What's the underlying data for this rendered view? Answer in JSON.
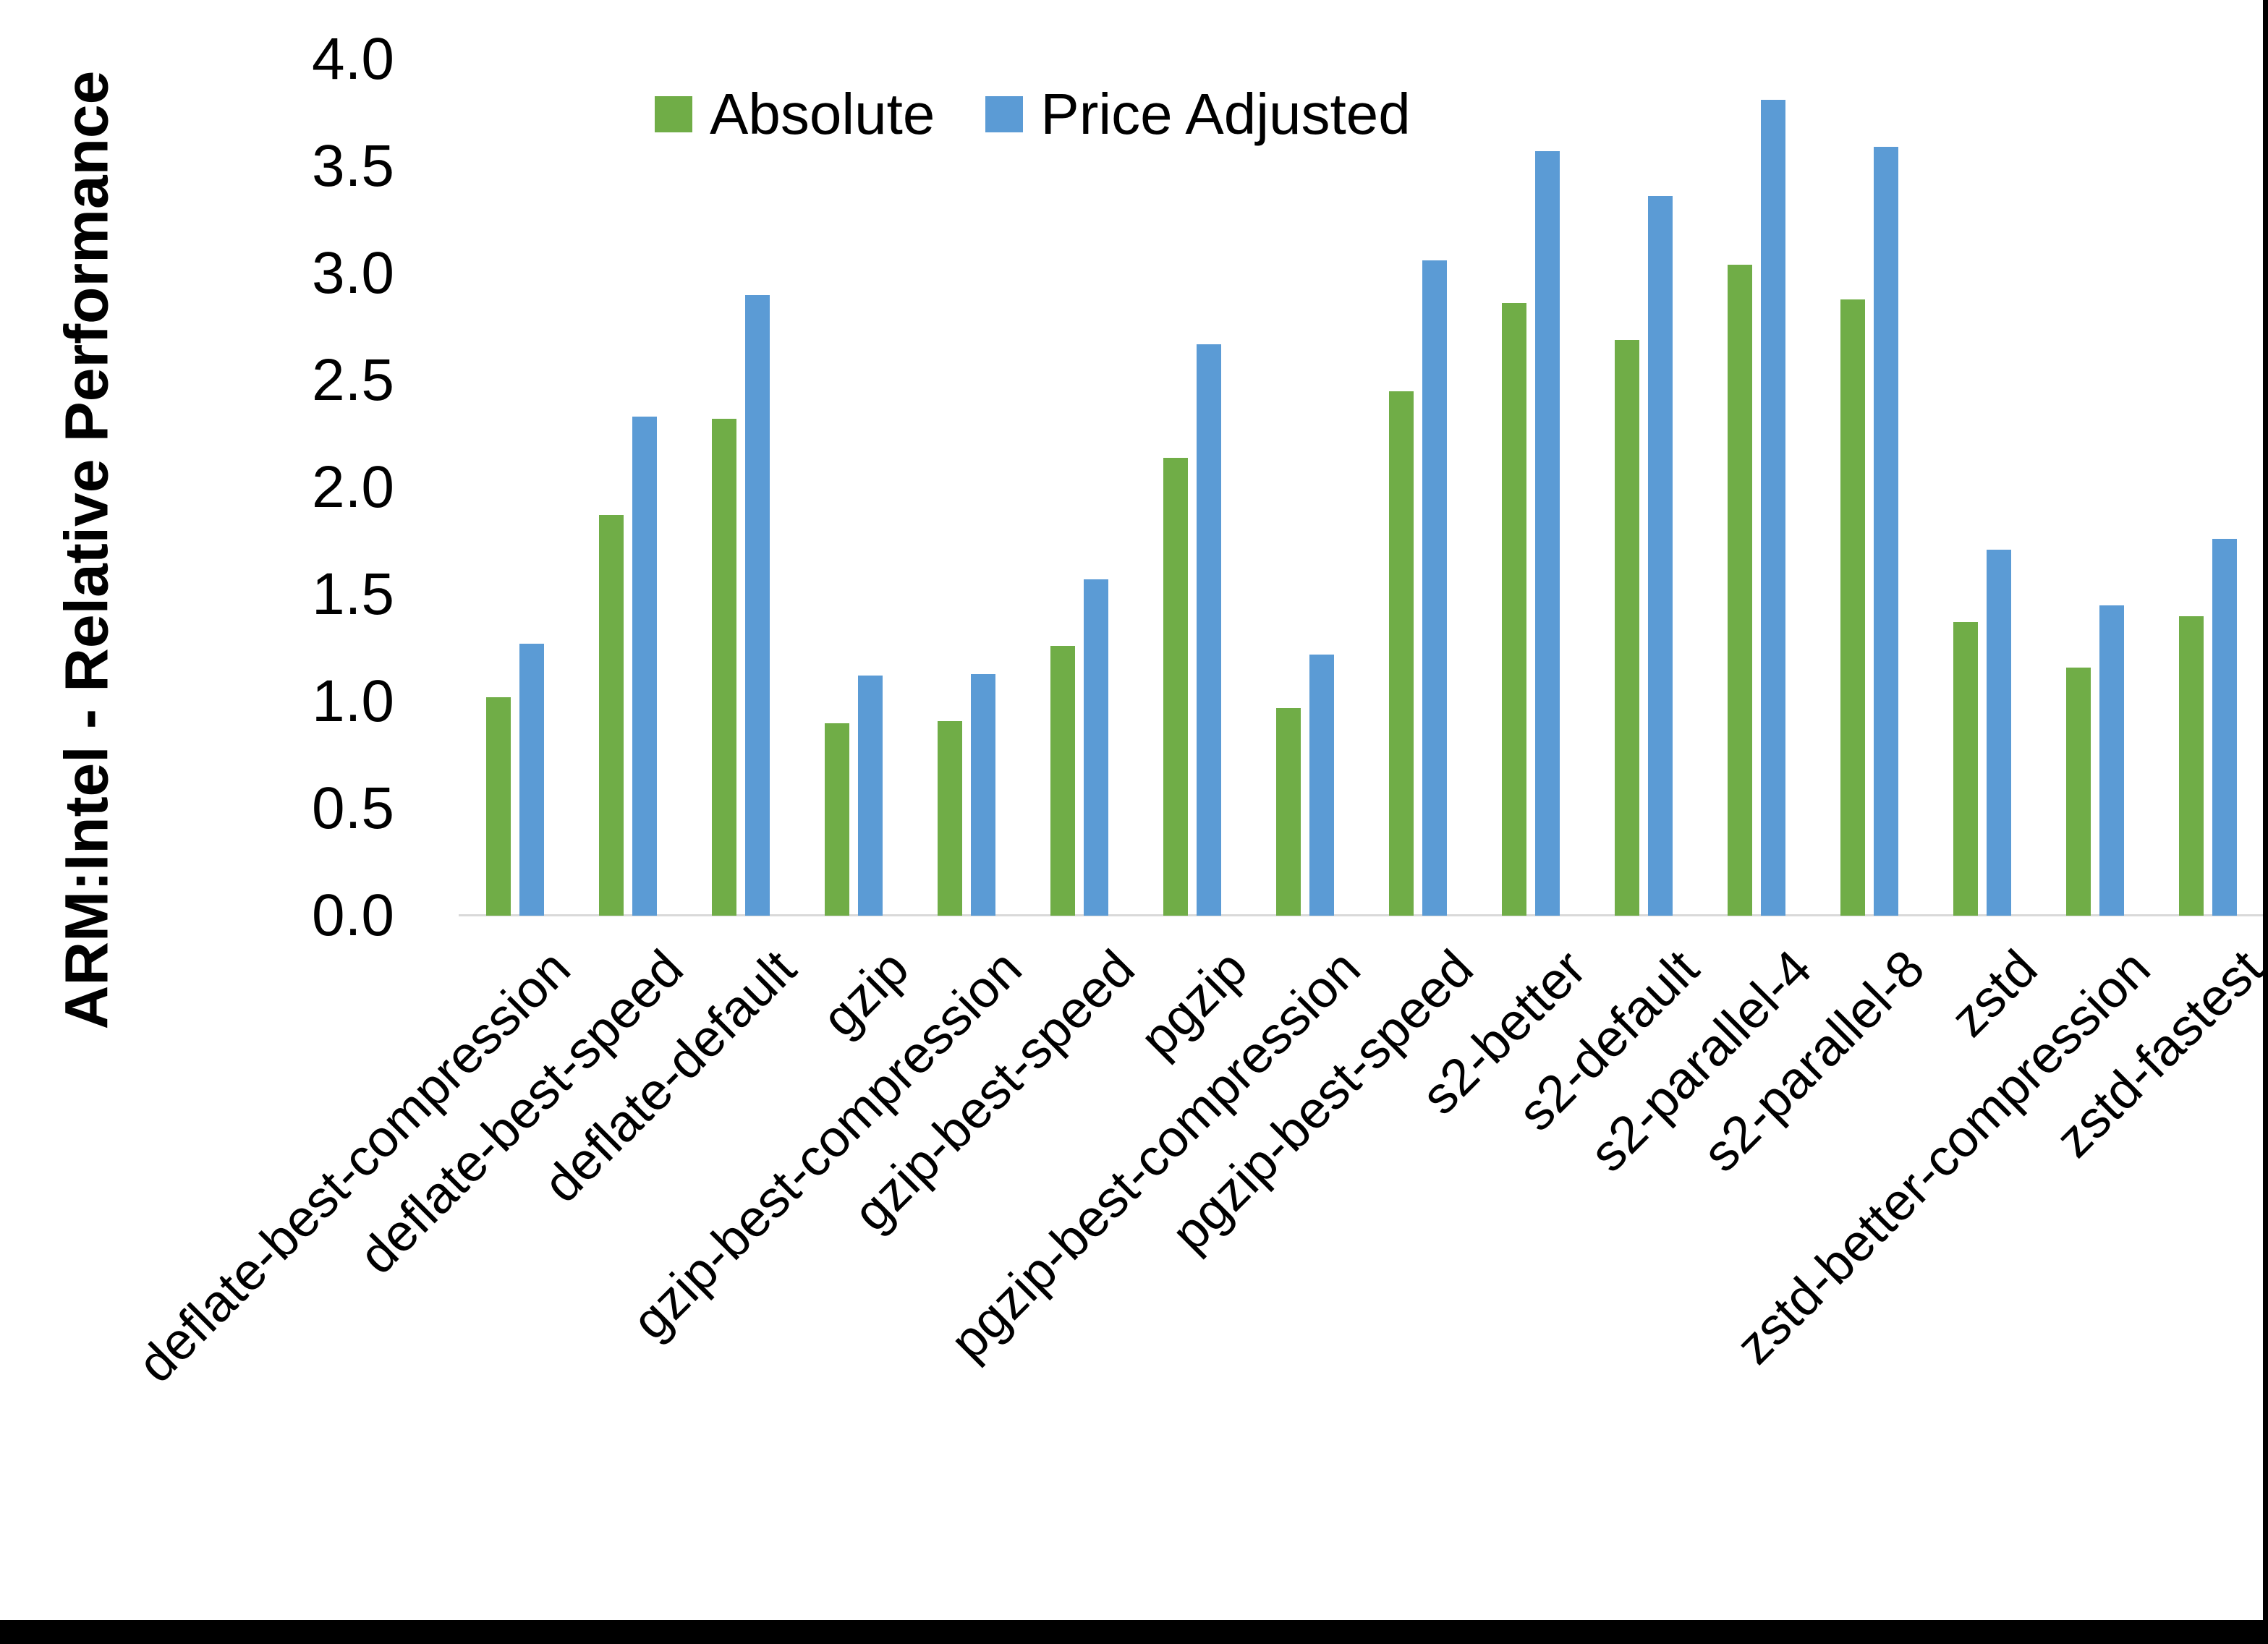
{
  "chart_data": {
    "type": "bar",
    "title": "",
    "xlabel": "",
    "ylabel": "ARM:Intel - Relative Performance",
    "ylim": [
      0.0,
      4.0
    ],
    "ytick_step": 0.5,
    "yticks": [
      "0.0",
      "0.5",
      "1.0",
      "1.5",
      "2.0",
      "2.5",
      "3.0",
      "3.5",
      "4.0"
    ],
    "grid": false,
    "legend_position": "top-center",
    "categories": [
      "deflate-best-compression",
      "deflate-best-speed",
      "deflate-default",
      "gzip",
      "gzip-best-compression",
      "gzip-best-speed",
      "pgzip",
      "pgzip-best-compression",
      "pgzip-best-speed",
      "s2-better",
      "s2-default",
      "s2-parallel-4",
      "s2-parallel-8",
      "zstd",
      "zstd-better-compression",
      "zstd-fastest"
    ],
    "series": [
      {
        "name": "Absolute",
        "color": "#70AD47",
        "values": [
          1.02,
          1.87,
          2.32,
          0.9,
          0.91,
          1.26,
          2.14,
          0.97,
          2.45,
          2.86,
          2.69,
          3.04,
          2.88,
          1.37,
          1.16,
          1.4
        ]
      },
      {
        "name": "Price Adjusted",
        "color": "#5B9BD5",
        "values": [
          1.27,
          2.33,
          2.9,
          1.12,
          1.13,
          1.57,
          2.67,
          1.22,
          3.06,
          3.57,
          3.36,
          3.81,
          3.59,
          1.71,
          1.45,
          1.76
        ]
      }
    ],
    "axis_line_color": "#D9D9D9",
    "text_color": "#000000",
    "bar_colors": {
      "absolute": "#70AD47",
      "price_adjusted": "#5B9BD5"
    }
  },
  "frame": {
    "bottom_edge_color": "#000000",
    "right_edge_color": "#000000"
  }
}
